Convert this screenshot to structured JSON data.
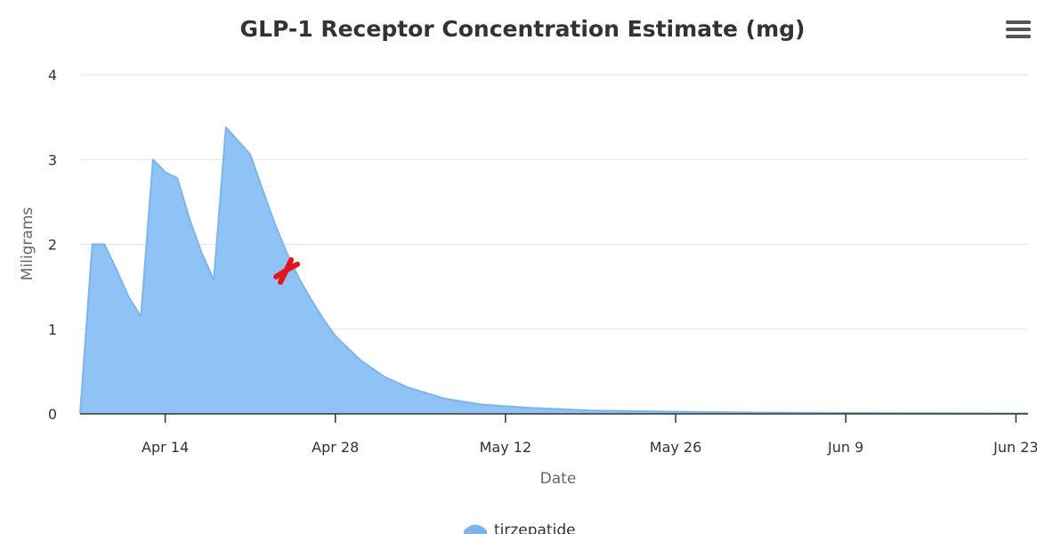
{
  "chart_data": {
    "type": "area",
    "title": "GLP-1 Receptor Concentration Estimate (mg)",
    "xlabel": "Date",
    "ylabel": "Miligrams",
    "xlim": [
      "2024-04-07",
      "2024-06-24"
    ],
    "ylim": [
      0,
      4
    ],
    "x_ticks": [
      {
        "date": "2024-04-14",
        "label": "Apr 14"
      },
      {
        "date": "2024-04-28",
        "label": "Apr 28"
      },
      {
        "date": "2024-05-12",
        "label": "May 12"
      },
      {
        "date": "2024-05-26",
        "label": "May 26"
      },
      {
        "date": "2024-06-09",
        "label": "Jun 9"
      },
      {
        "date": "2024-06-23",
        "label": "Jun 23"
      }
    ],
    "y_ticks": [
      0,
      1,
      2,
      3,
      4
    ],
    "grid": true,
    "legend": "bottom",
    "series": [
      {
        "name": "tirzepatide",
        "color": "#7cb5ec",
        "fill_color": "#90c3f5",
        "x": [
          "2024-04-07",
          "2024-04-08",
          "2024-04-09",
          "2024-04-10",
          "2024-04-11",
          "2024-04-12",
          "2024-04-13",
          "2024-04-14",
          "2024-04-15",
          "2024-04-16",
          "2024-04-17",
          "2024-04-18",
          "2024-04-19",
          "2024-04-20",
          "2024-04-21",
          "2024-04-22",
          "2024-04-23",
          "2024-04-24",
          "2024-04-25",
          "2024-04-26",
          "2024-04-27",
          "2024-04-28",
          "2024-04-30",
          "2024-05-02",
          "2024-05-04",
          "2024-05-07",
          "2024-05-10",
          "2024-05-14",
          "2024-05-19",
          "2024-05-26",
          "2024-06-02",
          "2024-06-09",
          "2024-06-16",
          "2024-06-24"
        ],
        "values": [
          0.0,
          2.0,
          2.0,
          1.7,
          1.38,
          1.15,
          3.0,
          2.85,
          2.78,
          2.3,
          1.9,
          1.58,
          3.38,
          3.22,
          3.06,
          2.65,
          2.25,
          1.9,
          1.6,
          1.35,
          1.12,
          0.92,
          0.64,
          0.44,
          0.31,
          0.18,
          0.11,
          0.07,
          0.04,
          0.025,
          0.015,
          0.01,
          0.008,
          0.005
        ]
      }
    ],
    "annotations": [
      {
        "type": "marker",
        "date": "2024-04-24",
        "value": 1.68,
        "color": "#e3161c"
      }
    ]
  },
  "toolbar": {
    "menu_icon": "hamburger-menu-icon"
  }
}
